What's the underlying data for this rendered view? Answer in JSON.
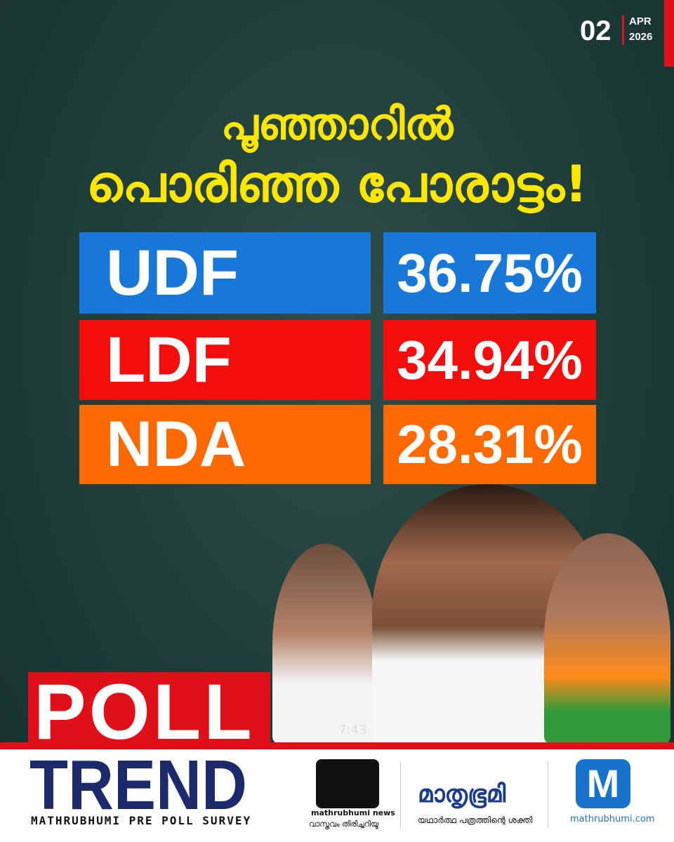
{
  "date": {
    "day": "02",
    "month": "APR",
    "year": "2026"
  },
  "headline": {
    "line1": "പൂഞ്ഞാറിൽ",
    "line2": "പൊരിഞ്ഞ പോരാട്ടം!"
  },
  "results": {
    "rows": [
      {
        "party": "UDF",
        "share": "36.75%",
        "color": "#1878d8"
      },
      {
        "party": "LDF",
        "share": "34.94%",
        "color": "#f40d0d"
      },
      {
        "party": "NDA",
        "share": "28.31%",
        "color": "#ff6a00"
      }
    ]
  },
  "photo_timestamp": "7:43",
  "poll_logo": {
    "word1": "POLL",
    "word2": "TREND",
    "tagline": "MATHRUBHUMI PRE POLL SURVEY"
  },
  "footer": {
    "news": {
      "name": "mathrubhumi news",
      "tagline": "വാസ്തവം തിരിച്ചറിയൂ"
    },
    "paper": {
      "name": "മാതൃഭൂമി",
      "tagline": "യഥാർത്ഥ പത്രത്തിന്റെ ശക്തി"
    },
    "web": {
      "icon": "M",
      "name": "mathrubhumi.com"
    }
  }
}
